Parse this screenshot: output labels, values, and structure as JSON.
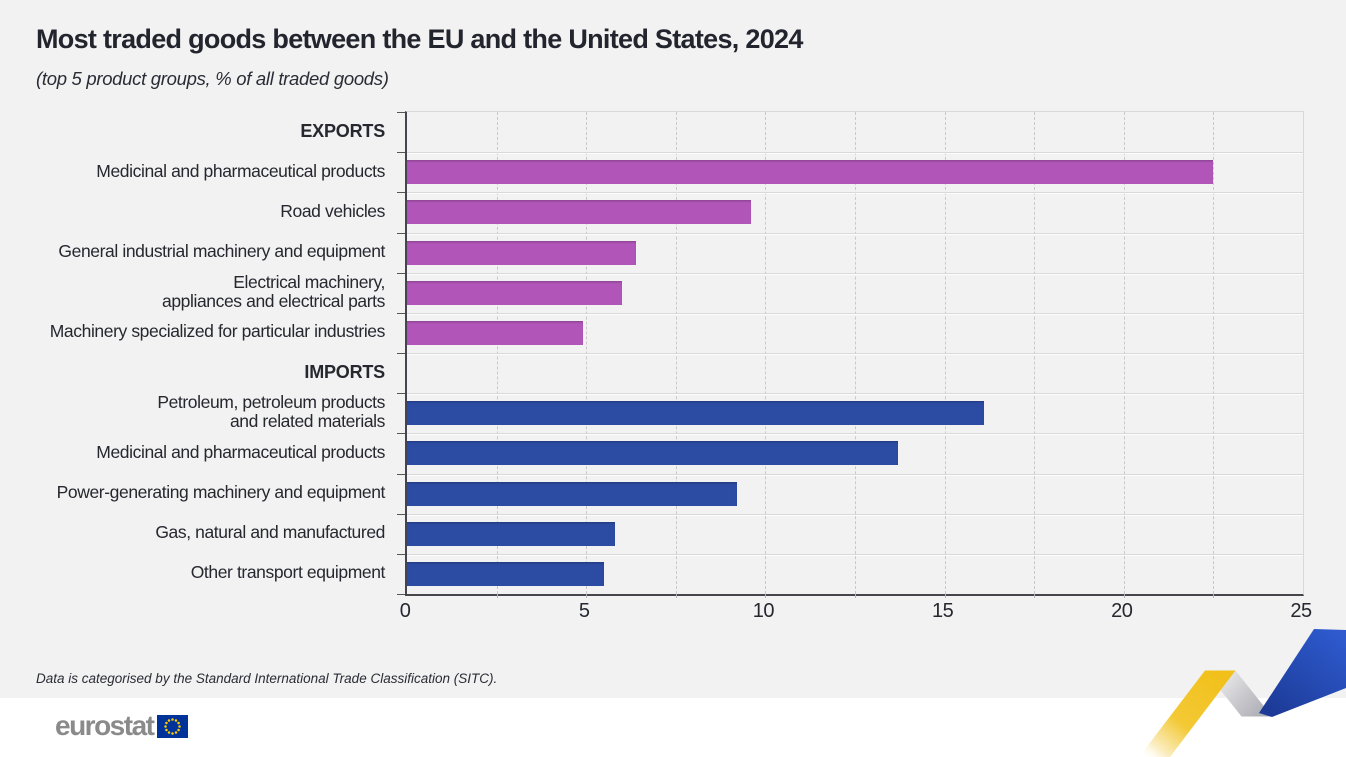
{
  "title": "Most traded goods between the EU and the United States, 2024",
  "subtitle": "(top 5 product groups, % of all traded goods)",
  "footnote": "Data is categorised by the Standard International Trade Classification (SITC).",
  "logo": {
    "text": "eurostat",
    "flag_blue": "#003399",
    "flag_star_yellow": "#ffcc00",
    "text_gray": "#8a8a8a"
  },
  "colors": {
    "background": "#f2f2f2",
    "footer_background": "#ffffff",
    "export_bar": "#b156b8",
    "import_bar": "#2c4ba3",
    "axis_dark": "#45454b",
    "grid_light": "#d9d9d9",
    "text": "#26272f",
    "ribbon_yellow": "#f2c31a",
    "ribbon_gray": "#b4b4ba",
    "ribbon_blue": "#2e5ace"
  },
  "chart_data": {
    "type": "bar",
    "orientation": "horizontal",
    "title": "Most traded goods between the EU and the United States, 2024",
    "subtitle": "(top 5 product groups, % of all traded goods)",
    "xlabel": "% of all traded goods",
    "ylabel": "",
    "xlim": [
      0,
      25
    ],
    "x_ticks": [
      0,
      5,
      10,
      15,
      20,
      25
    ],
    "gridline_step": 2.5,
    "grid": "on",
    "legend": "none",
    "sections": [
      {
        "label": "EXPORTS",
        "color": "#b156b8",
        "items": [
          {
            "label": "Medicinal and pharmaceutical products",
            "value": 22.5
          },
          {
            "label": "Road vehicles",
            "value": 9.6
          },
          {
            "label": "General industrial machinery and equipment",
            "value": 6.4
          },
          {
            "label": "Electrical machinery,\nappliances and electrical parts",
            "value": 6.0
          },
          {
            "label": "Machinery specialized for particular industries",
            "value": 4.9
          }
        ]
      },
      {
        "label": "IMPORTS",
        "color": "#2c4ba3",
        "items": [
          {
            "label": "Petroleum, petroleum products\nand related materials",
            "value": 16.1
          },
          {
            "label": "Medicinal and pharmaceutical products",
            "value": 13.7
          },
          {
            "label": "Power-generating machinery and equipment",
            "value": 9.2
          },
          {
            "label": "Gas, natural and manufactured",
            "value": 5.8
          },
          {
            "label": "Other transport equipment",
            "value": 5.5
          }
        ]
      }
    ]
  }
}
